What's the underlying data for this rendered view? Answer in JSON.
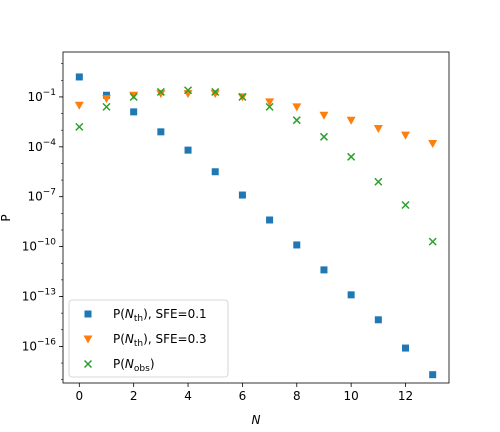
{
  "chart_data": {
    "type": "scatter",
    "xlabel": "N",
    "ylabel": "P",
    "xlim": [
      -0.6,
      13.6
    ],
    "ylim_log10": [
      -18.2,
      1.7
    ],
    "y_scale": "log",
    "x_ticks": [
      {
        "value": 0,
        "label": "0"
      },
      {
        "value": 2,
        "label": "2"
      },
      {
        "value": 4,
        "label": "4"
      },
      {
        "value": 6,
        "label": "6"
      },
      {
        "value": 8,
        "label": "8"
      },
      {
        "value": 10,
        "label": "10"
      },
      {
        "value": 12,
        "label": "12"
      }
    ],
    "y_ticks": [
      {
        "exp": -1,
        "label": "10",
        "sup": "−1"
      },
      {
        "exp": -4,
        "label": "10",
        "sup": "−4"
      },
      {
        "exp": -7,
        "label": "10",
        "sup": "−7"
      },
      {
        "exp": -10,
        "label": "10",
        "sup": "−10"
      },
      {
        "exp": -13,
        "label": "10",
        "sup": "−13"
      },
      {
        "exp": -16,
        "label": "10",
        "sup": "−16"
      }
    ],
    "grid": false,
    "legend_position": "lower-left",
    "series": [
      {
        "name": "P(Nth), SFE=0.1",
        "legend_prefix": "P(",
        "legend_var": "N",
        "legend_sub": "th",
        "legend_suffix": "), SFE=0.1",
        "marker": "square",
        "color": "#1f77b4",
        "x": [
          0,
          1,
          2,
          3,
          4,
          5,
          6,
          7,
          8,
          9,
          10,
          11,
          12,
          13
        ],
        "log10_y": [
          0.2,
          -0.9,
          -1.9,
          -3.1,
          -4.2,
          -5.5,
          -6.9,
          -8.4,
          -9.9,
          -11.4,
          -12.9,
          -14.4,
          -16.1,
          -17.7
        ]
      },
      {
        "name": "P(Nth), SFE=0.3",
        "legend_prefix": "P(",
        "legend_var": "N",
        "legend_sub": "th",
        "legend_suffix": "), SFE=0.3",
        "marker": "triangle-down",
        "color": "#ff7f0e",
        "x": [
          0,
          1,
          2,
          3,
          4,
          5,
          6,
          7,
          8,
          9,
          10,
          11,
          12,
          13
        ],
        "log10_y": [
          -1.5,
          -1.1,
          -0.9,
          -0.8,
          -0.8,
          -0.8,
          -1.0,
          -1.3,
          -1.6,
          -2.1,
          -2.4,
          -2.9,
          -3.3,
          -3.8
        ]
      },
      {
        "name": "P(Nobs)",
        "legend_prefix": "P(",
        "legend_var": "N",
        "legend_sub": "obs",
        "legend_suffix": ")",
        "marker": "x",
        "color": "#2ca02c",
        "x": [
          0,
          1,
          2,
          3,
          4,
          5,
          6,
          7,
          8,
          9,
          10,
          11,
          12,
          13
        ],
        "log10_y": [
          -2.8,
          -1.6,
          -1.0,
          -0.7,
          -0.6,
          -0.7,
          -1.0,
          -1.6,
          -2.4,
          -3.4,
          -4.6,
          -6.1,
          -7.5,
          -9.7
        ]
      }
    ]
  }
}
